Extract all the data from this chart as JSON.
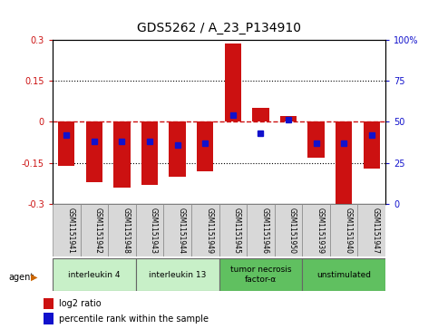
{
  "title": "GDS5262 / A_23_P134910",
  "samples": [
    "GSM1151941",
    "GSM1151942",
    "GSM1151948",
    "GSM1151943",
    "GSM1151944",
    "GSM1151949",
    "GSM1151945",
    "GSM1151946",
    "GSM1151950",
    "GSM1151939",
    "GSM1151940",
    "GSM1151947"
  ],
  "log2_ratio": [
    -0.16,
    -0.22,
    -0.24,
    -0.23,
    -0.2,
    -0.18,
    0.285,
    0.05,
    0.02,
    -0.13,
    -0.305,
    -0.17
  ],
  "percentile_rank": [
    42,
    38,
    38,
    38,
    36,
    37,
    54,
    43,
    51,
    37,
    37,
    42
  ],
  "agents": [
    {
      "label": "interleukin 4",
      "start": 0,
      "end": 2,
      "color": "#c8f0c8"
    },
    {
      "label": "interleukin 13",
      "start": 3,
      "end": 5,
      "color": "#c8f0c8"
    },
    {
      "label": "tumor necrosis\nfactor-α",
      "start": 6,
      "end": 8,
      "color": "#60c060"
    },
    {
      "label": "unstimulated",
      "start": 9,
      "end": 11,
      "color": "#60c060"
    }
  ],
  "ylim": [
    -0.3,
    0.3
  ],
  "y2lim": [
    0,
    100
  ],
  "yticks": [
    -0.3,
    -0.15,
    0,
    0.15,
    0.3
  ],
  "y2ticks": [
    0,
    25,
    50,
    75,
    100
  ],
  "bar_color": "#cc1111",
  "dot_color": "#1111cc",
  "background_color": "#ffffff",
  "zero_line_color": "#cc1111",
  "bar_width": 0.6,
  "sample_box_color": "#d8d8d8",
  "sample_box_edge": "#888888",
  "agent_edge_color": "#666666",
  "legend_log2_label": "log2 ratio",
  "legend_pct_label": "percentile rank within the sample",
  "agent_label": "agent"
}
